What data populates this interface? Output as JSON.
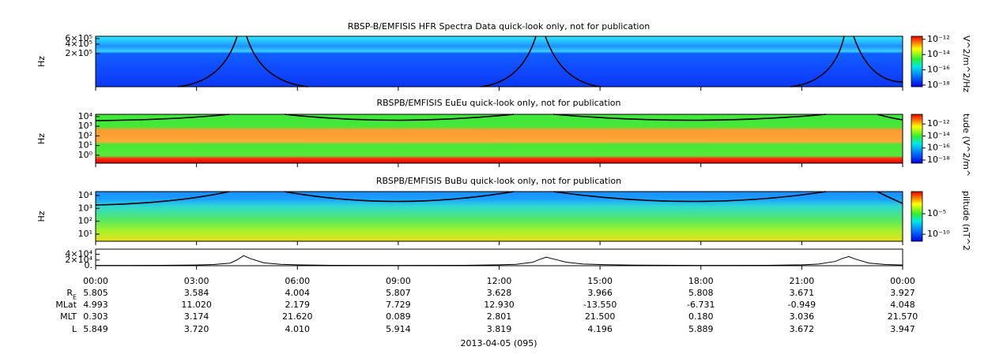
{
  "chart_data": [
    {
      "type": "spectrogram",
      "title": "RBSP-B/EMFISIS  HFR Spectra Data quick-look only, not for publication",
      "ylabel": "Hz",
      "log_y": true,
      "ylim": [
        18000,
        710000
      ],
      "yticks": [
        {
          "value": 600000,
          "label": "6×10⁵"
        },
        {
          "value": 400000,
          "label": "4×10⁵"
        },
        {
          "value": 200000,
          "label": "2×10⁵"
        }
      ],
      "colorbar": {
        "label": "V^2/m^2/Hz",
        "log": true,
        "clim": [
          6e-19,
          2.5e-12
        ],
        "ticks": [
          {
            "value": 1e-12,
            "label": "10⁻¹²"
          },
          {
            "value": 1e-14,
            "label": "10⁻¹⁴"
          },
          {
            "value": 1e-16,
            "label": "10⁻¹⁶"
          },
          {
            "value": 1e-18,
            "label": "10⁻¹⁸"
          }
        ]
      }
    },
    {
      "type": "spectrogram",
      "title": "RBSPB/EMFISIS  EuEu quick-look only, not for publication",
      "ylabel": "Hz",
      "log_y": true,
      "ylim": [
        0.15,
        17000
      ],
      "yticks": [
        {
          "value": 10000,
          "label": "10⁴"
        },
        {
          "value": 1000,
          "label": "10³"
        },
        {
          "value": 100,
          "label": "10²"
        },
        {
          "value": 10,
          "label": "10¹"
        },
        {
          "value": 1,
          "label": "10⁰"
        }
      ],
      "colorbar": {
        "label": "tude (V^2/m^",
        "log": true,
        "clim": [
          3e-19,
          4e-11
        ],
        "ticks": [
          {
            "value": 1e-12,
            "label": "10⁻¹²"
          },
          {
            "value": 1e-14,
            "label": "10⁻¹⁴"
          },
          {
            "value": 1e-16,
            "label": "10⁻¹⁶"
          },
          {
            "value": 1e-18,
            "label": "10⁻¹⁸"
          }
        ]
      }
    },
    {
      "type": "spectrogram",
      "title": "RBSPB/EMFISIS  BuBu quick-look only, not for publication",
      "ylabel": "Hz",
      "log_y": true,
      "ylim": [
        2.8,
        20000
      ],
      "yticks": [
        {
          "value": 10000,
          "label": "10⁴"
        },
        {
          "value": 1000,
          "label": "10³"
        },
        {
          "value": 100,
          "label": "10²"
        },
        {
          "value": 10,
          "label": "10¹"
        }
      ],
      "colorbar": {
        "label": "plitude (nT^2",
        "log": true,
        "clim": [
          2e-12,
          2.4
        ],
        "ticks": [
          {
            "value": 1e-05,
            "label": "10⁻⁵"
          },
          {
            "value": 1e-10,
            "label": "10⁻¹⁰"
          }
        ]
      }
    },
    {
      "type": "line",
      "color": "#000000",
      "ylim": [
        0,
        58000
      ],
      "yticks": [
        {
          "value": 40000,
          "label": "4×10⁴"
        },
        {
          "value": 20000,
          "label": "2×10⁴"
        },
        {
          "value": 0,
          "label": "0."
        }
      ],
      "xlim": [
        0,
        24
      ],
      "xticks": [
        {
          "value": 0,
          "label": "00:00"
        },
        {
          "value": 3,
          "label": "03:00"
        },
        {
          "value": 6,
          "label": "06:00"
        },
        {
          "value": 9,
          "label": "09:00"
        },
        {
          "value": 12,
          "label": "12:00"
        },
        {
          "value": 15,
          "label": "15:00"
        },
        {
          "value": 18,
          "label": "18:00"
        },
        {
          "value": 21,
          "label": "21:00"
        },
        {
          "value": 24,
          "label": "00:00"
        }
      ],
      "x": [
        0,
        1,
        2,
        3,
        3.5,
        4,
        4.2,
        4.4,
        4.6,
        5,
        5.5,
        6,
        7,
        9,
        11,
        12,
        12.5,
        13,
        13.2,
        13.4,
        13.6,
        14,
        14.5,
        15,
        16,
        18,
        20,
        21,
        21.5,
        22,
        22.2,
        22.4,
        22.6,
        23,
        23.5,
        24
      ],
      "values": [
        1000,
        1000,
        1500,
        2500,
        4000,
        9000,
        20000,
        35000,
        25000,
        10000,
        5000,
        3000,
        1500,
        1000,
        1500,
        3000,
        5000,
        12000,
        22000,
        30000,
        24000,
        12000,
        6000,
        4000,
        2000,
        1000,
        1500,
        3000,
        6000,
        15000,
        25000,
        32000,
        23000,
        9000,
        4000,
        2500
      ]
    }
  ],
  "ephemeris": {
    "rows": [
      {
        "label": "R",
        "subscript": "E",
        "values": [
          "5.805",
          "3.584",
          "4.004",
          "5.807",
          "3.628",
          "3.966",
          "5.808",
          "3.671",
          "3.927"
        ]
      },
      {
        "label": "MLat",
        "values": [
          "4.993",
          "11.020",
          "2.179",
          "7.729",
          "12.930",
          "-13.550",
          "-6.731",
          "-0.949",
          "4.048"
        ]
      },
      {
        "label": "MLT",
        "values": [
          "0.303",
          "3.174",
          "21.620",
          "0.089",
          "2.801",
          "21.500",
          "0.180",
          "3.036",
          "21.570"
        ]
      },
      {
        "label": "L",
        "values": [
          "5.849",
          "3.720",
          "4.010",
          "5.914",
          "3.819",
          "4.196",
          "5.889",
          "3.672",
          "3.947"
        ]
      }
    ]
  },
  "date": "2013-04-05 (095)"
}
